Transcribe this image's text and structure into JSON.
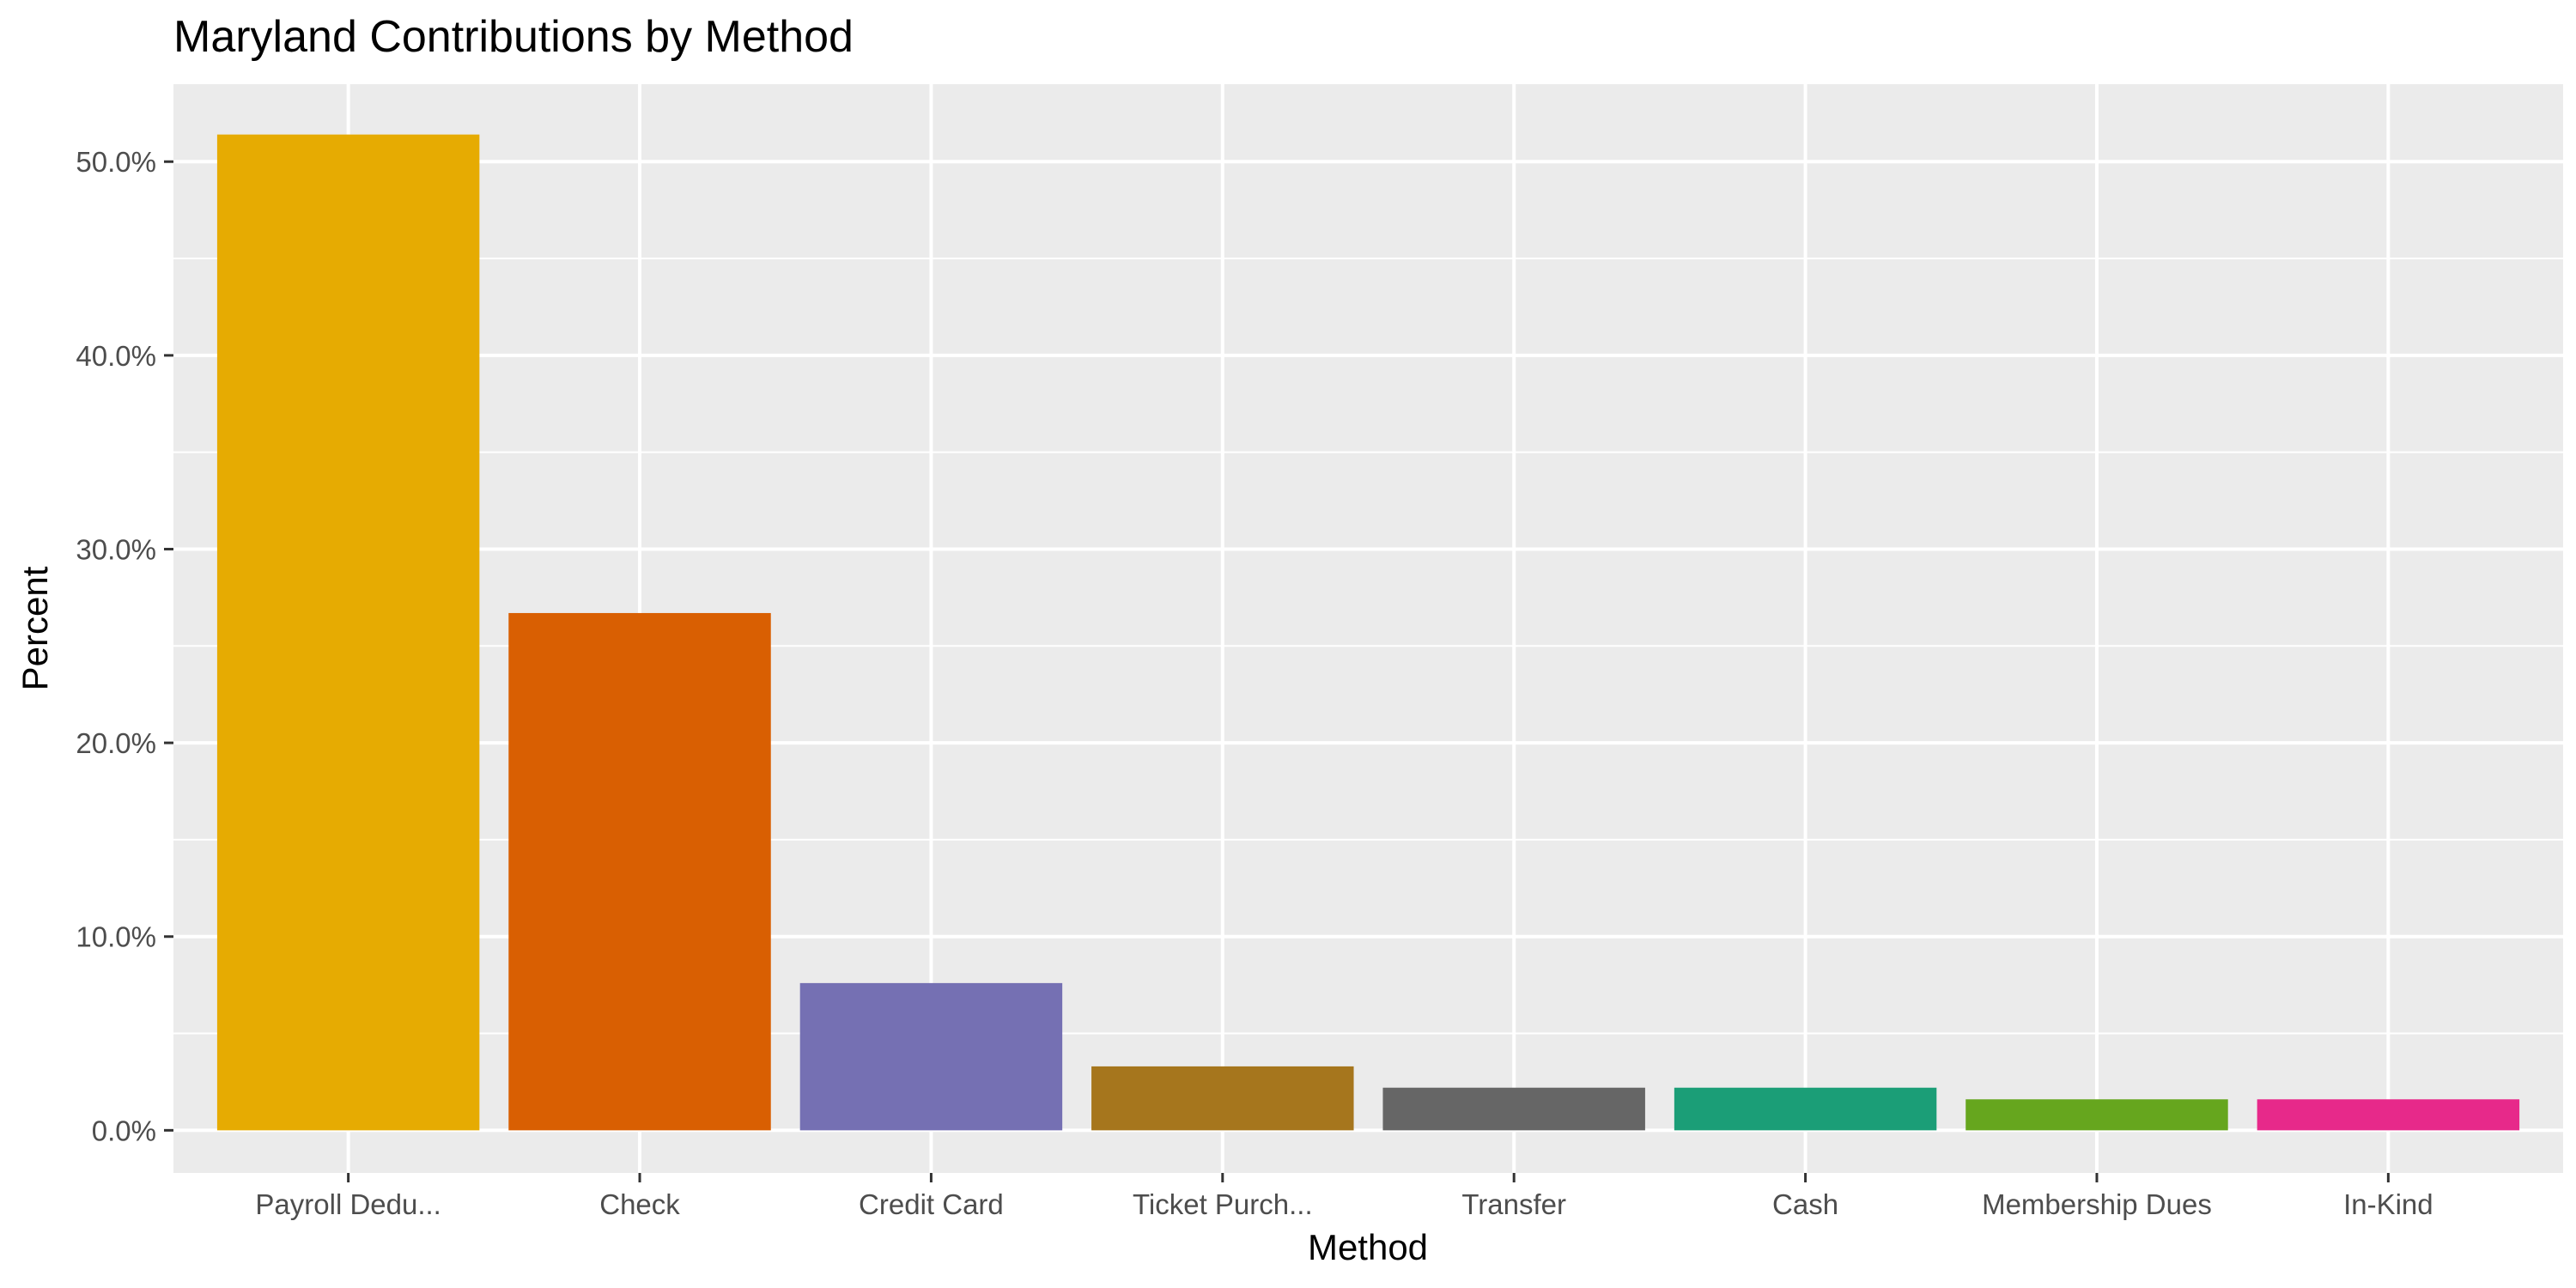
{
  "chart_data": {
    "type": "bar",
    "title": "Maryland Contributions by Method",
    "xlabel": "Method",
    "ylabel": "Percent",
    "categories": [
      "Payroll Dedu...",
      "Check",
      "Credit Card",
      "Ticket Purch...",
      "Transfer",
      "Cash",
      "Membership Dues",
      "In-Kind"
    ],
    "values": [
      51.4,
      26.7,
      7.6,
      3.3,
      2.2,
      2.2,
      1.6,
      1.6
    ],
    "colors": [
      "#E6AB02",
      "#D95F02",
      "#7570B3",
      "#A6761D",
      "#666666",
      "#1B9E77",
      "#66A61E",
      "#E7298A"
    ],
    "yticks": [
      0,
      10,
      20,
      30,
      40,
      50
    ],
    "ytick_labels": [
      "0.0%",
      "10.0%",
      "20.0%",
      "30.0%",
      "40.0%",
      "50.0%"
    ],
    "ylim": [
      -2.2,
      54.0
    ],
    "grid": true,
    "legend": "none",
    "panel_background": "#EBEBEB",
    "grid_color": "#FFFFFF"
  }
}
